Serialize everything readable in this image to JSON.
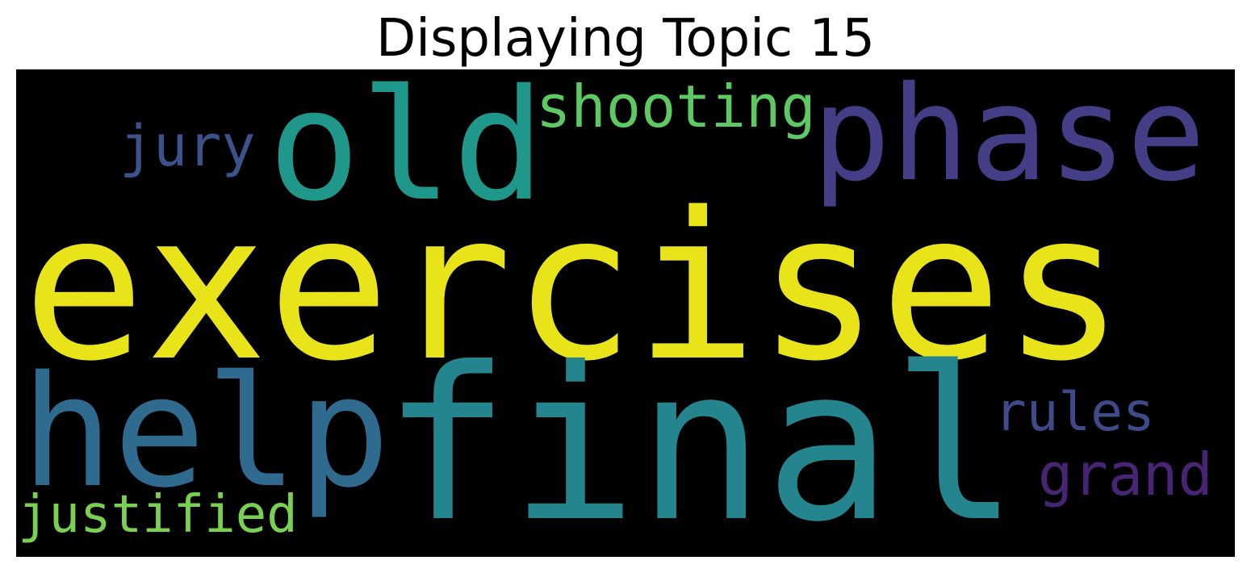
{
  "title": "Displaying Topic 15",
  "cloud": {
    "background": "#000000",
    "words": {
      "exercises": {
        "text": "exercises",
        "color": "#e8e419"
      },
      "final": {
        "text": "final",
        "color": "#25858e"
      },
      "help": {
        "text": "help",
        "color": "#2f6b8e"
      },
      "phase": {
        "text": "phase",
        "color": "#433e85"
      },
      "old": {
        "text": "old",
        "color": "#1f988b"
      },
      "shooting": {
        "text": "shooting",
        "color": "#5ec962"
      },
      "jury": {
        "text": "jury",
        "color": "#3b528b"
      },
      "rules": {
        "text": "rules",
        "color": "#3e4a89"
      },
      "grand": {
        "text": "grand",
        "color": "#482475"
      },
      "justified": {
        "text": "justified",
        "color": "#7ad151"
      }
    }
  }
}
